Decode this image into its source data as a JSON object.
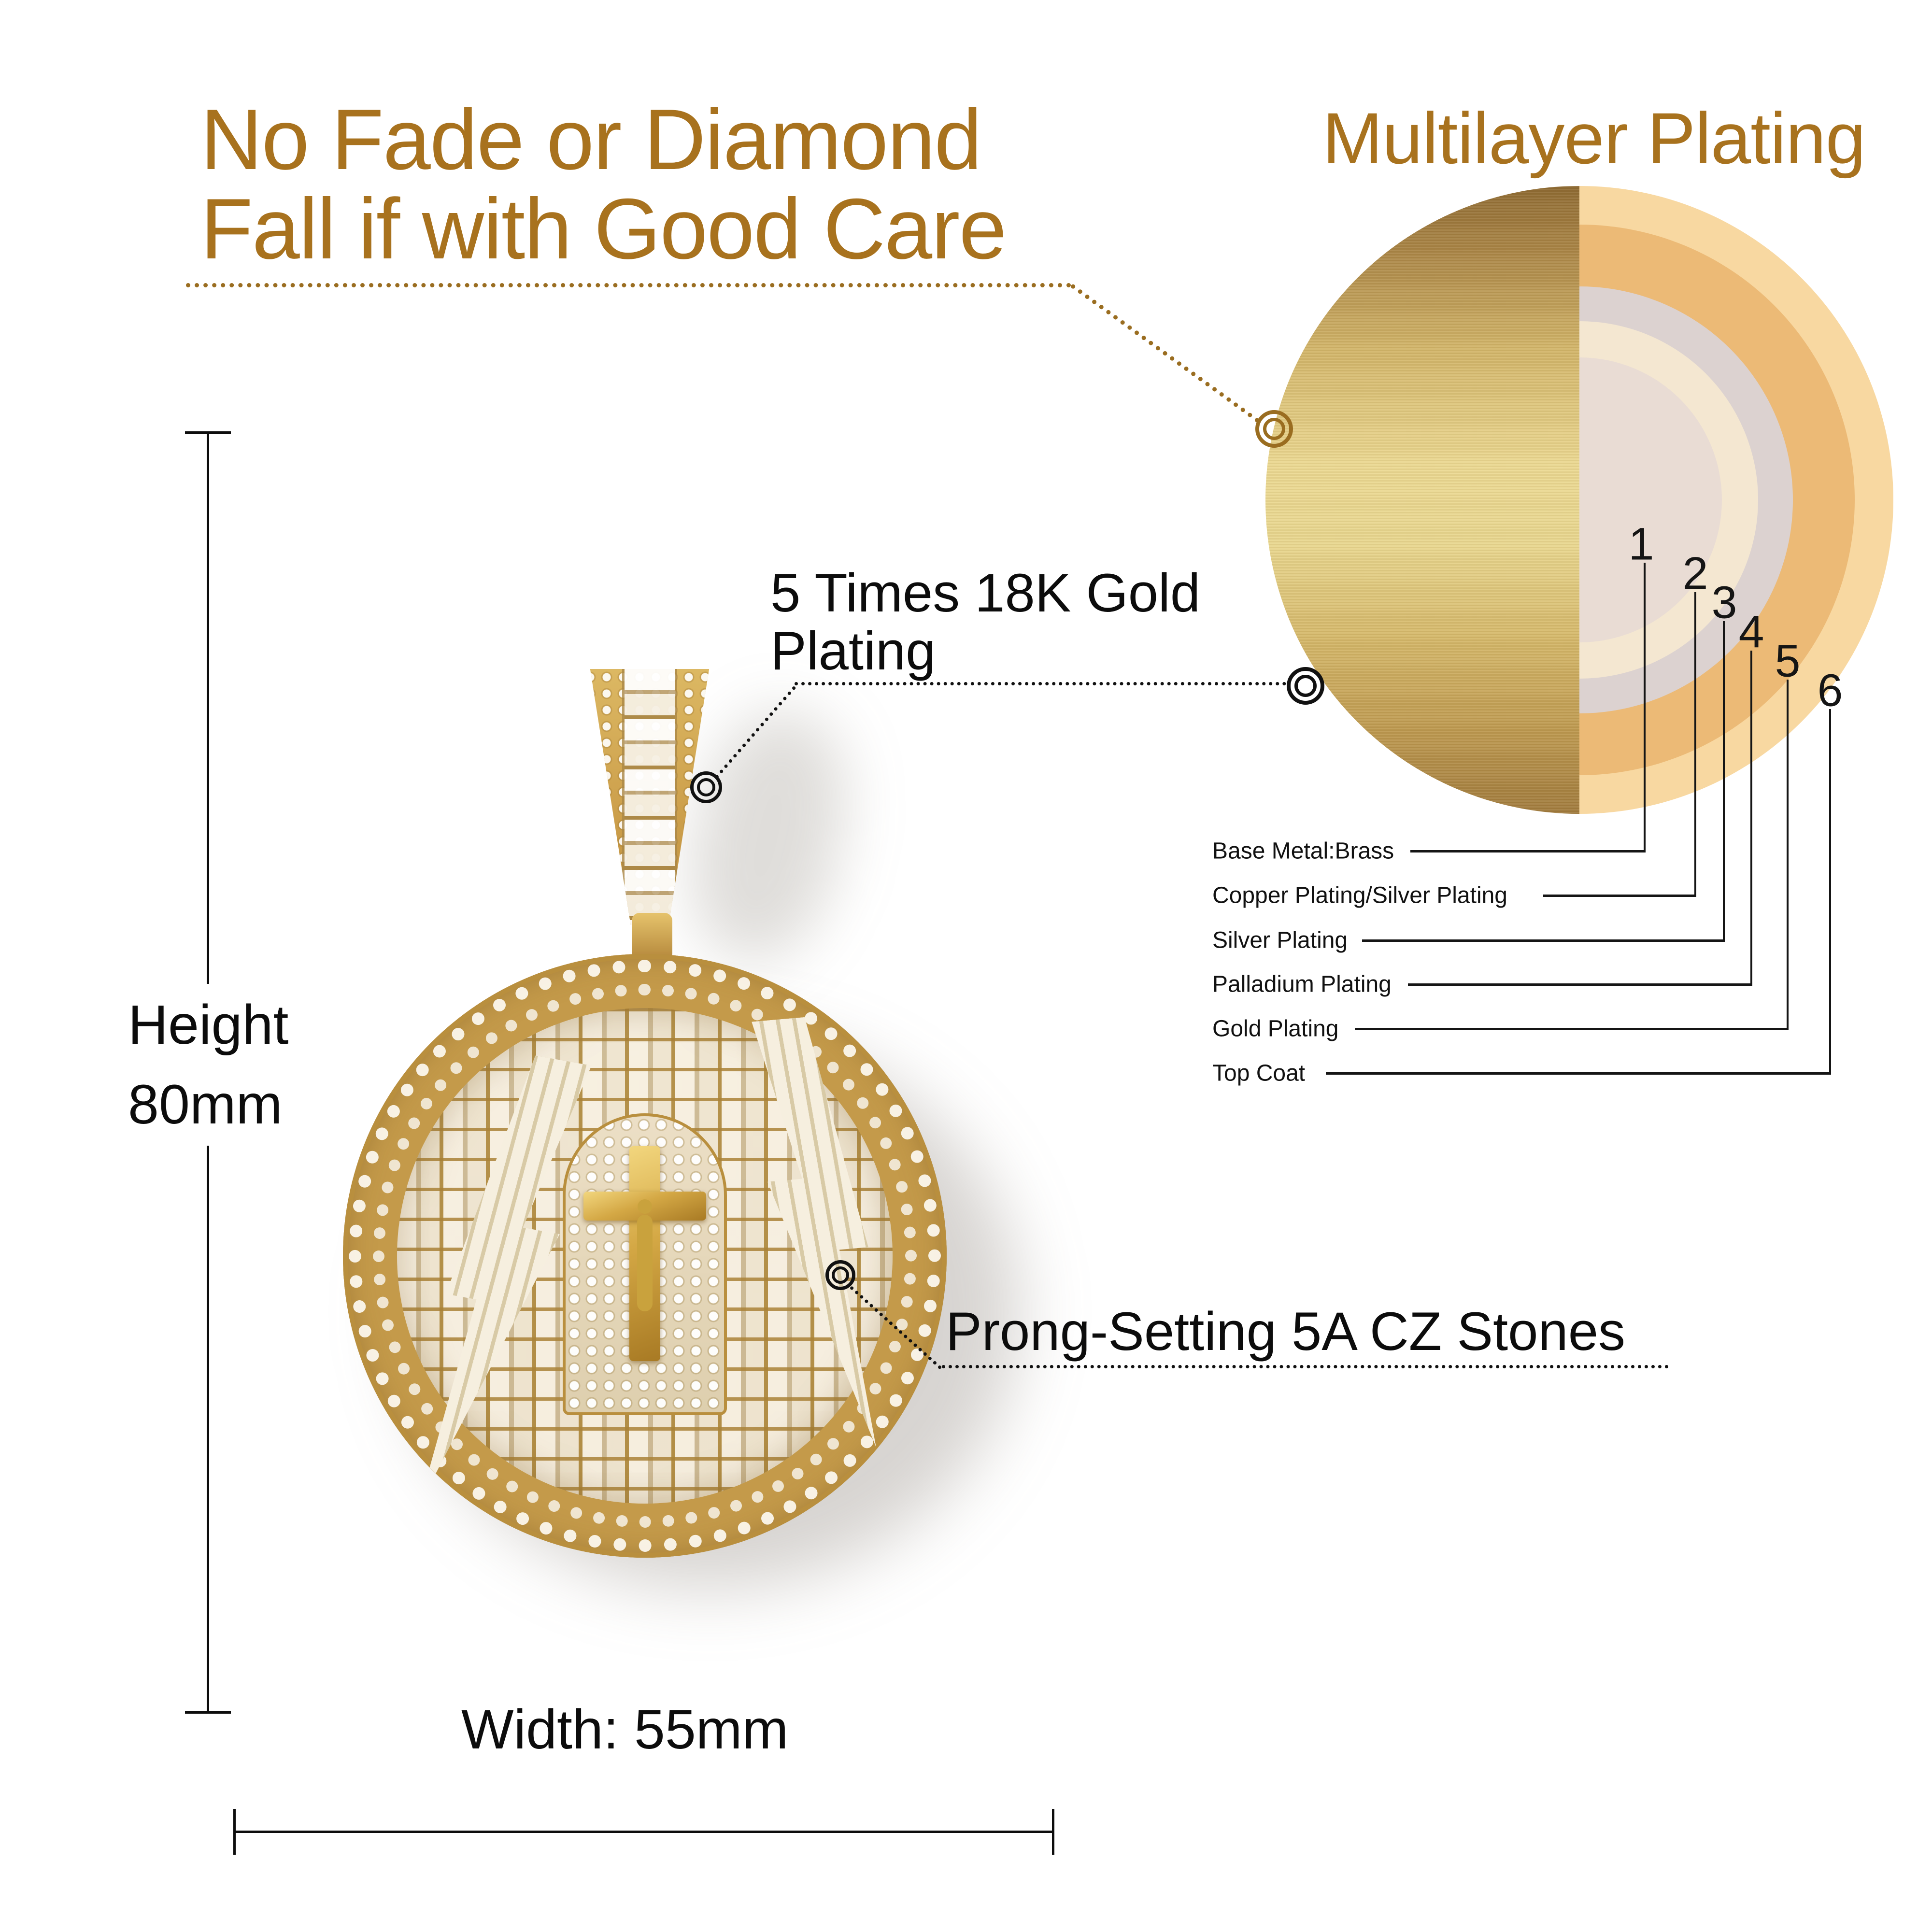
{
  "headline": {
    "line1": "No Fade or Diamond",
    "line2": "Fall if with Good Care",
    "color": "#a8721e"
  },
  "plating": {
    "title": "Multilayer Plating",
    "layers": [
      {
        "num": "1",
        "label": "Base Metal:Brass"
      },
      {
        "num": "2",
        "label": "Copper Plating/Silver Plating"
      },
      {
        "num": "3",
        "label": "Silver Plating"
      },
      {
        "num": "4",
        "label": "Palladium Plating"
      },
      {
        "num": "5",
        "label": "Gold Plating"
      },
      {
        "num": "6",
        "label": "Top Coat"
      }
    ],
    "sphere_colors": {
      "left_gold_dark": "#8e6a32",
      "left_gold_light": "#ecd992",
      "ring_top_coat": "#f8d8a1",
      "ring_gold": "#ecba76",
      "ring_palladium": "#dcd2d0",
      "ring_silver": "#f4e7d1",
      "ring_copper_inner": "#e9dcd4"
    }
  },
  "annotations": {
    "gold_plating_line1": "5 Times 18K Gold",
    "gold_plating_line2": "Plating",
    "prong_setting": "Prong-Setting 5A CZ Stones"
  },
  "dimensions": {
    "height_label": "Height",
    "height_value": "80mm",
    "width": "Width: 55mm"
  },
  "colors": {
    "accent_brown": "#a8721e",
    "connector_brown": "#9a6d20",
    "text_black": "#111111",
    "pendant_gold": "#c49a4a"
  }
}
